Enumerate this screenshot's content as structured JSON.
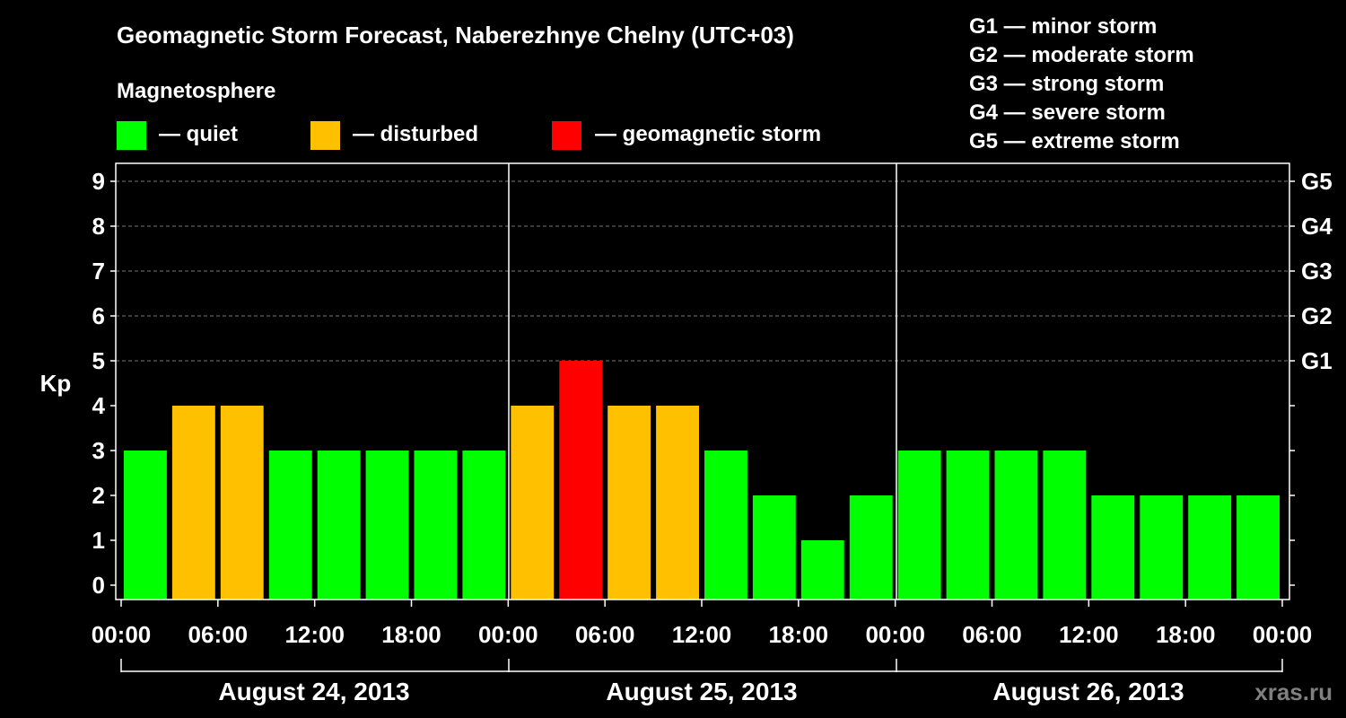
{
  "chart_data": {
    "type": "bar",
    "title": "Geomagnetic Storm Forecast, Naberezhnye Chelny (UTC+03)",
    "legend_title": "Magnetosphere",
    "legend": [
      {
        "label": "— quiet",
        "color": "#00ff00"
      },
      {
        "label": "— disturbed",
        "color": "#ffc000"
      },
      {
        "label": "— geomagnetic storm",
        "color": "#ff0000"
      }
    ],
    "storm_scale": [
      {
        "label": "G1 — minor storm"
      },
      {
        "label": "G2 — moderate storm"
      },
      {
        "label": "G3 — strong storm"
      },
      {
        "label": "G4 — severe storm"
      },
      {
        "label": "G5 — extreme storm"
      }
    ],
    "ylabel": "Kp",
    "ylim": [
      0,
      9
    ],
    "yticks": [
      "0",
      "1",
      "2",
      "3",
      "4",
      "5",
      "6",
      "7",
      "8",
      "9"
    ],
    "right_ticks": [
      {
        "kp": 5,
        "label": "G1"
      },
      {
        "kp": 6,
        "label": "G2"
      },
      {
        "kp": 7,
        "label": "G3"
      },
      {
        "kp": 8,
        "label": "G4"
      },
      {
        "kp": 9,
        "label": "G5"
      }
    ],
    "x_tick_labels": [
      "00:00",
      "06:00",
      "12:00",
      "18:00",
      "00:00",
      "06:00",
      "12:00",
      "18:00",
      "00:00",
      "06:00",
      "12:00",
      "18:00",
      "00:00"
    ],
    "days": [
      "August 24, 2013",
      "August 25, 2013",
      "August 26, 2013"
    ],
    "values": [
      3,
      4,
      4,
      3,
      3,
      3,
      3,
      3,
      4,
      5,
      4,
      4,
      3,
      2,
      1,
      2,
      3,
      3,
      3,
      3,
      2,
      2,
      2,
      2
    ],
    "colors": {
      "quiet": "#00ff00",
      "disturbed": "#ffc000",
      "storm": "#ff0000"
    },
    "watermark": "xras.ru"
  }
}
